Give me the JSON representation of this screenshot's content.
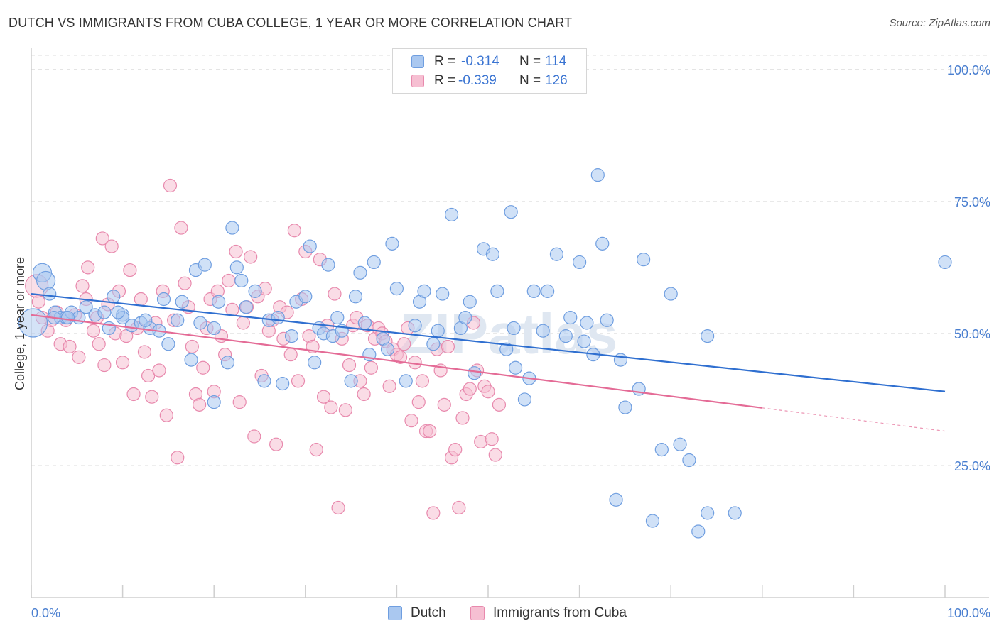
{
  "header": {
    "title": "DUTCH VS IMMIGRANTS FROM CUBA COLLEGE, 1 YEAR OR MORE CORRELATION CHART",
    "source": "Source: ZipAtlas.com"
  },
  "watermark": "ZIPatlas",
  "legend": {
    "rows": [
      {
        "r_label": "R =",
        "r_value": "-0.314",
        "n_label": "N =",
        "n_value": "114"
      },
      {
        "r_label": "R =",
        "r_value": "-0.339",
        "n_label": "N =",
        "n_value": "126"
      }
    ]
  },
  "bottom_legend": {
    "dutch": "Dutch",
    "cuba": "Immigrants from Cuba"
  },
  "colors": {
    "dutch_fill": "#aac8f0",
    "dutch_stroke": "#6f9ee0",
    "dutch_line": "#2f6fd0",
    "cuba_fill": "#f6bfd2",
    "cuba_stroke": "#e889ad",
    "cuba_line": "#e46b96",
    "grid": "#dcdcdc",
    "axis_text": "#4a7fd0"
  },
  "chart_data": {
    "type": "scatter",
    "title": "DUTCH VS IMMIGRANTS FROM CUBA COLLEGE, 1 YEAR OR MORE CORRELATION CHART",
    "xlabel": "",
    "ylabel": "College, 1 year or more",
    "xlim": [
      0,
      100
    ],
    "ylim": [
      0,
      104
    ],
    "x_tick_labels": [
      "0.0%",
      "100.0%"
    ],
    "y_ticks": [
      25,
      50,
      75,
      100
    ],
    "y_tick_labels": [
      "25.0%",
      "50.0%",
      "75.0%",
      "100.0%"
    ],
    "grid": true,
    "legend_position": "top-center",
    "series": [
      {
        "name": "Dutch",
        "r": -0.314,
        "n": 114,
        "trend": {
          "x0": 0,
          "y0": 57.5,
          "x1": 100,
          "y1": 39.0,
          "solid_to": 100
        },
        "points": [
          [
            1.2,
            61.5
          ],
          [
            1.6,
            60.0
          ],
          [
            2.0,
            57.5
          ],
          [
            2.6,
            54.0
          ],
          [
            3.2,
            53.0
          ],
          [
            3.8,
            53.0
          ],
          [
            4.4,
            54.0
          ],
          [
            5.2,
            53.0
          ],
          [
            6.0,
            55.0
          ],
          [
            7.0,
            53.5
          ],
          [
            8.5,
            51.0
          ],
          [
            9.0,
            57.0
          ],
          [
            10.0,
            53.5
          ],
          [
            11.0,
            51.5
          ],
          [
            12.0,
            52.0
          ],
          [
            13.0,
            51.0
          ],
          [
            14.0,
            50.5
          ],
          [
            14.5,
            56.5
          ],
          [
            16.0,
            52.5
          ],
          [
            16.5,
            56.0
          ],
          [
            17.5,
            45.0
          ],
          [
            18.0,
            62.0
          ],
          [
            19.0,
            63.0
          ],
          [
            20.0,
            51.0
          ],
          [
            20.5,
            56.0
          ],
          [
            21.5,
            44.5
          ],
          [
            22.0,
            70.0
          ],
          [
            22.5,
            62.5
          ],
          [
            23.0,
            60.0
          ],
          [
            23.5,
            55.0
          ],
          [
            24.5,
            58.0
          ],
          [
            25.5,
            41.0
          ],
          [
            26.0,
            52.5
          ],
          [
            27.0,
            53.0
          ],
          [
            27.5,
            40.5
          ],
          [
            28.5,
            49.5
          ],
          [
            29.0,
            56.0
          ],
          [
            30.0,
            57.0
          ],
          [
            30.5,
            66.5
          ],
          [
            31.0,
            44.5
          ],
          [
            31.5,
            51.0
          ],
          [
            32.0,
            50.0
          ],
          [
            32.5,
            63.0
          ],
          [
            33.0,
            49.5
          ],
          [
            33.5,
            53.0
          ],
          [
            34.0,
            50.5
          ],
          [
            35.0,
            41.0
          ],
          [
            35.5,
            57.0
          ],
          [
            36.0,
            61.5
          ],
          [
            36.5,
            52.0
          ],
          [
            37.0,
            46.0
          ],
          [
            37.5,
            63.5
          ],
          [
            38.5,
            49.0
          ],
          [
            39.0,
            47.0
          ],
          [
            39.5,
            67.0
          ],
          [
            40.0,
            58.5
          ],
          [
            41.0,
            41.0
          ],
          [
            42.0,
            51.5
          ],
          [
            42.5,
            56.0
          ],
          [
            43.0,
            58.0
          ],
          [
            44.5,
            50.5
          ],
          [
            45.0,
            57.5
          ],
          [
            46.0,
            72.5
          ],
          [
            47.0,
            51.0
          ],
          [
            47.5,
            53.0
          ],
          [
            48.0,
            56.0
          ],
          [
            48.5,
            42.5
          ],
          [
            49.5,
            66.0
          ],
          [
            50.5,
            65.0
          ],
          [
            51.0,
            58.0
          ],
          [
            52.0,
            47.0
          ],
          [
            52.5,
            73.0
          ],
          [
            53.0,
            43.5
          ],
          [
            54.0,
            37.5
          ],
          [
            54.5,
            41.5
          ],
          [
            55.0,
            58.0
          ],
          [
            56.5,
            58.0
          ],
          [
            57.5,
            65.0
          ],
          [
            58.5,
            49.5
          ],
          [
            59.0,
            53.0
          ],
          [
            60.0,
            63.5
          ],
          [
            60.5,
            48.5
          ],
          [
            61.5,
            46.0
          ],
          [
            62.0,
            80.0
          ],
          [
            63.0,
            52.5
          ],
          [
            64.0,
            18.5
          ],
          [
            65.0,
            36.0
          ],
          [
            66.5,
            39.5
          ],
          [
            67.0,
            64.0
          ],
          [
            68.0,
            14.5
          ],
          [
            69.0,
            28.0
          ],
          [
            70.0,
            57.5
          ],
          [
            71.0,
            29.0
          ],
          [
            72.0,
            26.0
          ],
          [
            73.0,
            12.5
          ],
          [
            74.0,
            16.0
          ],
          [
            20.0,
            37.0
          ],
          [
            15.0,
            48.0
          ],
          [
            12.5,
            52.5
          ],
          [
            8.0,
            54.0
          ],
          [
            4.0,
            53.0
          ],
          [
            2.5,
            53.0
          ],
          [
            62.5,
            67.0
          ],
          [
            60.8,
            52.0
          ],
          [
            64.5,
            45.0
          ],
          [
            56.0,
            50.5
          ],
          [
            52.8,
            51.0
          ],
          [
            44.0,
            48.0
          ],
          [
            10.0,
            53.0
          ],
          [
            9.5,
            54.0
          ],
          [
            18.5,
            52.0
          ],
          [
            100.0,
            63.5
          ],
          [
            74.0,
            49.5
          ],
          [
            77.0,
            16.0
          ]
        ]
      },
      {
        "name": "Immigrants from Cuba",
        "r": -0.339,
        "n": 126,
        "trend": {
          "x0": 0,
          "y0": 53.5,
          "x1": 100,
          "y1": 31.5,
          "solid_to": 80
        },
        "points": [
          [
            0.8,
            56.0
          ],
          [
            1.2,
            53.0
          ],
          [
            1.8,
            50.5
          ],
          [
            2.2,
            52.5
          ],
          [
            2.8,
            54.0
          ],
          [
            3.2,
            48.0
          ],
          [
            3.8,
            52.5
          ],
          [
            4.2,
            47.5
          ],
          [
            4.8,
            53.5
          ],
          [
            5.2,
            45.5
          ],
          [
            5.6,
            59.0
          ],
          [
            6.0,
            56.5
          ],
          [
            6.2,
            62.5
          ],
          [
            6.8,
            50.5
          ],
          [
            7.2,
            53.0
          ],
          [
            7.4,
            48.0
          ],
          [
            7.8,
            68.0
          ],
          [
            8.0,
            44.0
          ],
          [
            8.4,
            55.5
          ],
          [
            8.8,
            66.5
          ],
          [
            9.2,
            50.0
          ],
          [
            9.6,
            58.0
          ],
          [
            10.0,
            44.5
          ],
          [
            10.4,
            49.5
          ],
          [
            10.8,
            62.0
          ],
          [
            11.2,
            38.5
          ],
          [
            11.6,
            51.0
          ],
          [
            12.0,
            56.5
          ],
          [
            12.4,
            46.5
          ],
          [
            12.8,
            42.0
          ],
          [
            13.2,
            38.0
          ],
          [
            13.6,
            52.0
          ],
          [
            14.0,
            43.0
          ],
          [
            14.4,
            58.0
          ],
          [
            14.8,
            34.5
          ],
          [
            15.2,
            78.0
          ],
          [
            15.6,
            52.5
          ],
          [
            16.0,
            26.5
          ],
          [
            16.4,
            70.0
          ],
          [
            16.8,
            59.5
          ],
          [
            17.2,
            55.0
          ],
          [
            17.6,
            47.5
          ],
          [
            18.0,
            38.5
          ],
          [
            18.4,
            36.5
          ],
          [
            18.8,
            43.5
          ],
          [
            19.2,
            51.0
          ],
          [
            19.6,
            56.5
          ],
          [
            20.0,
            39.0
          ],
          [
            20.4,
            58.0
          ],
          [
            20.8,
            49.5
          ],
          [
            21.2,
            46.0
          ],
          [
            21.6,
            60.0
          ],
          [
            22.0,
            54.5
          ],
          [
            22.4,
            65.5
          ],
          [
            22.8,
            37.0
          ],
          [
            23.2,
            52.0
          ],
          [
            23.6,
            55.0
          ],
          [
            24.0,
            64.5
          ],
          [
            24.4,
            30.5
          ],
          [
            24.8,
            57.0
          ],
          [
            25.2,
            42.0
          ],
          [
            25.6,
            58.5
          ],
          [
            26.0,
            50.5
          ],
          [
            26.4,
            52.5
          ],
          [
            26.8,
            29.0
          ],
          [
            27.2,
            55.0
          ],
          [
            27.6,
            49.0
          ],
          [
            28.0,
            54.0
          ],
          [
            28.4,
            46.0
          ],
          [
            28.8,
            69.5
          ],
          [
            29.2,
            41.0
          ],
          [
            29.6,
            56.5
          ],
          [
            30.0,
            65.5
          ],
          [
            30.4,
            49.5
          ],
          [
            30.8,
            47.5
          ],
          [
            31.2,
            28.0
          ],
          [
            31.6,
            64.0
          ],
          [
            32.0,
            38.0
          ],
          [
            32.4,
            51.5
          ],
          [
            32.8,
            36.0
          ],
          [
            33.2,
            57.5
          ],
          [
            33.6,
            17.0
          ],
          [
            34.0,
            49.0
          ],
          [
            34.4,
            35.5
          ],
          [
            34.8,
            44.0
          ],
          [
            35.2,
            51.5
          ],
          [
            35.6,
            53.0
          ],
          [
            36.0,
            41.0
          ],
          [
            36.4,
            38.5
          ],
          [
            36.8,
            51.5
          ],
          [
            37.2,
            43.5
          ],
          [
            37.6,
            49.0
          ],
          [
            38.0,
            51.0
          ],
          [
            38.4,
            50.0
          ],
          [
            38.8,
            48.5
          ],
          [
            39.2,
            40.0
          ],
          [
            39.6,
            47.0
          ],
          [
            40.0,
            46.0
          ],
          [
            40.4,
            45.5
          ],
          [
            40.8,
            48.0
          ],
          [
            41.2,
            51.0
          ],
          [
            41.6,
            33.5
          ],
          [
            42.0,
            44.5
          ],
          [
            42.4,
            37.0
          ],
          [
            42.8,
            41.0
          ],
          [
            43.2,
            31.5
          ],
          [
            43.6,
            31.5
          ],
          [
            44.0,
            16.0
          ],
          [
            44.4,
            47.0
          ],
          [
            44.8,
            43.0
          ],
          [
            45.2,
            36.5
          ],
          [
            45.6,
            47.5
          ],
          [
            46.0,
            26.5
          ],
          [
            46.4,
            28.0
          ],
          [
            46.8,
            17.0
          ],
          [
            47.2,
            34.0
          ],
          [
            47.6,
            38.5
          ],
          [
            48.0,
            39.5
          ],
          [
            48.4,
            52.0
          ],
          [
            48.8,
            43.0
          ],
          [
            49.2,
            29.5
          ],
          [
            49.6,
            40.0
          ],
          [
            50.0,
            39.0
          ],
          [
            50.4,
            30.0
          ],
          [
            50.8,
            27.0
          ],
          [
            51.2,
            36.5
          ]
        ]
      }
    ]
  }
}
